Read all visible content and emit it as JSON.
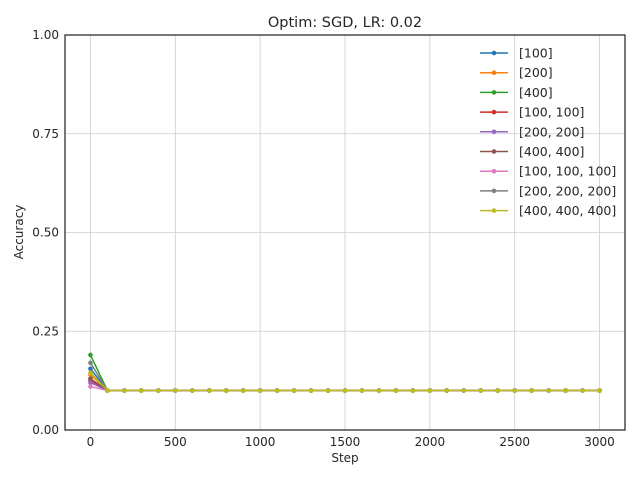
{
  "chart_data": {
    "type": "line",
    "title": "Optim: SGD, LR: 0.02",
    "xlabel": "Step",
    "ylabel": "Accuracy",
    "xlim": [
      -150,
      3150
    ],
    "ylim": [
      0.0,
      1.0
    ],
    "xticks": [
      0,
      500,
      1000,
      1500,
      2000,
      2500,
      3000
    ],
    "yticks": [
      0.0,
      0.25,
      0.5,
      0.75,
      1.0
    ],
    "xtick_labels": [
      "0",
      "500",
      "1000",
      "1500",
      "2000",
      "2500",
      "3000"
    ],
    "ytick_labels": [
      "0.00",
      "0.25",
      "0.50",
      "0.75",
      "1.00"
    ],
    "grid": true,
    "legend_position": "top-right",
    "x": [
      0,
      100,
      200,
      300,
      400,
      500,
      600,
      700,
      800,
      900,
      1000,
      1100,
      1200,
      1300,
      1400,
      1500,
      1600,
      1700,
      1800,
      1900,
      2000,
      2100,
      2200,
      2300,
      2400,
      2500,
      2600,
      2700,
      2800,
      2900,
      3000
    ],
    "series": [
      {
        "name": "[100]",
        "color": "#1f77b4",
        "start": 0.155,
        "rest": 0.1
      },
      {
        "name": "[200]",
        "color": "#ff7f0e",
        "start": 0.14,
        "rest": 0.1
      },
      {
        "name": "[400]",
        "color": "#2ca02c",
        "start": 0.19,
        "rest": 0.1
      },
      {
        "name": "[100, 100]",
        "color": "#d62728",
        "start": 0.125,
        "rest": 0.1
      },
      {
        "name": "[200, 200]",
        "color": "#9467bd",
        "start": 0.12,
        "rest": 0.1
      },
      {
        "name": "[400, 400]",
        "color": "#8c564b",
        "start": 0.13,
        "rest": 0.1
      },
      {
        "name": "[100, 100, 100]",
        "color": "#e377c2",
        "start": 0.11,
        "rest": 0.1
      },
      {
        "name": "[200, 200, 200]",
        "color": "#7f7f7f",
        "start": 0.17,
        "rest": 0.1
      },
      {
        "name": "[400, 400, 400]",
        "color": "#bcbd22",
        "start": 0.145,
        "rest": 0.1
      }
    ]
  }
}
